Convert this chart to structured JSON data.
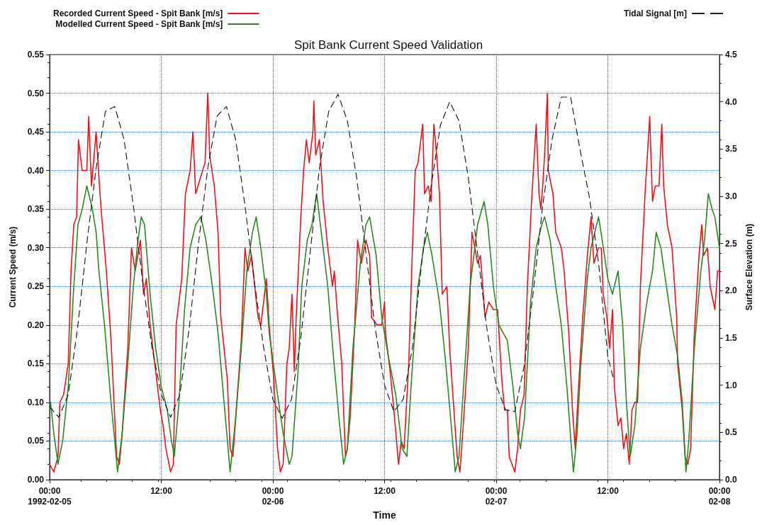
{
  "chart_data": {
    "type": "line",
    "title": "Spit Bank Current Speed Validation",
    "xlabel": "Time",
    "ylabel": "Current Speed (m/s)",
    "y2label": "Surface Elevation (m)",
    "xlim": [
      "1992-02-05T00:00",
      "1992-02-08T00:00"
    ],
    "xticks": [
      {
        "value": "1992-02-05T00:00",
        "label": "00:00\n1992-02-05"
      },
      {
        "value": "1992-02-05T12:00",
        "label": "12:00"
      },
      {
        "value": "1992-02-06T00:00",
        "label": "00:00\n02-06"
      },
      {
        "value": "1992-02-06T12:00",
        "label": "12:00"
      },
      {
        "value": "1992-02-07T00:00",
        "label": "00:00\n02-07"
      },
      {
        "value": "1992-02-07T12:00",
        "label": "12:00"
      },
      {
        "value": "1992-02-08T00:00",
        "label": "00:00\n02-08"
      }
    ],
    "ylim": [
      0,
      0.55
    ],
    "yticks": [
      {
        "value": 0,
        "label": "0.00"
      },
      0.05,
      {
        "value": 0.1,
        "label": "0.10"
      },
      0.15,
      {
        "value": 0.2,
        "label": "0.20"
      },
      0.25,
      {
        "value": 0.3,
        "label": "0.30"
      },
      0.35,
      {
        "value": 0.4,
        "label": "0.40"
      },
      0.45,
      {
        "value": 0.5,
        "label": "0.50"
      },
      0.55
    ],
    "y2lim": [
      0,
      4.5
    ],
    "y2ticks": [
      {
        "value": 0,
        "label": "0.0"
      },
      0.5,
      {
        "value": 1,
        "label": "1.0"
      },
      1.5,
      {
        "value": 2,
        "label": "2.0"
      },
      2.5,
      {
        "value": 3,
        "label": "3.0"
      },
      3.5,
      {
        "value": 4,
        "label": "4.0"
      },
      4.5
    ],
    "grid": true,
    "legend": "top",
    "marker": "none",
    "series": [
      {
        "name": "Recorded Current Speed - Spit Bank [m/s]",
        "color": "#e8141a",
        "line_style": "solid",
        "x": [
          "1992-02-05T00:00",
          "1992-02-05T00:27",
          "1992-02-05T00:54",
          "1992-02-05T01:06",
          "1992-02-05T01:30",
          "1992-02-05T02:00",
          "1992-02-05T02:18",
          "1992-02-05T02:36",
          "1992-02-05T02:54",
          "1992-02-05T03:06",
          "1992-02-05T03:30",
          "1992-02-05T04:00",
          "1992-02-05T04:12",
          "1992-02-05T04:30",
          "1992-02-05T05:00",
          "1992-02-05T05:18",
          "1992-02-05T05:36",
          "1992-02-05T06:06",
          "1992-02-05T06:36",
          "1992-02-05T07:00",
          "1992-02-05T07:12",
          "1992-02-05T07:30",
          "1992-02-05T07:48",
          "1992-02-05T08:24",
          "1992-02-05T08:48",
          "1992-02-05T09:12",
          "1992-02-05T09:45",
          "1992-02-05T10:06",
          "1992-02-05T10:24",
          "1992-02-05T10:48",
          "1992-02-05T11:24",
          "1992-02-05T11:54",
          "1992-02-05T12:12",
          "1992-02-05T12:30",
          "1992-02-05T13:00",
          "1992-02-05T13:18",
          "1992-02-05T13:36",
          "1992-02-05T14:12",
          "1992-02-05T14:36",
          "1992-02-05T15:06",
          "1992-02-05T15:24",
          "1992-02-05T15:42",
          "1992-02-05T16:12",
          "1992-02-05T16:42",
          "1992-02-05T17:00",
          "1992-02-05T17:12",
          "1992-02-05T17:42",
          "1992-02-05T18:06",
          "1992-02-05T18:24",
          "1992-02-05T19:06",
          "1992-02-05T19:24",
          "1992-02-05T19:42",
          "1992-02-05T20:00",
          "1992-02-05T20:36",
          "1992-02-05T21:00",
          "1992-02-05T21:18",
          "1992-02-05T21:42",
          "1992-02-05T22:24",
          "1992-02-05T22:42",
          "1992-02-05T23:18",
          "1992-02-05T23:36",
          "1992-02-06T00:06",
          "1992-02-06T00:30",
          "1992-02-06T00:48",
          "1992-02-06T01:06",
          "1992-02-06T01:30",
          "1992-02-06T01:45",
          "1992-02-06T02:03",
          "1992-02-06T02:18",
          "1992-02-06T02:30",
          "1992-02-06T03:00",
          "1992-02-06T03:18",
          "1992-02-06T03:36",
          "1992-02-06T03:54",
          "1992-02-06T04:18",
          "1992-02-06T04:24",
          "1992-02-06T04:36",
          "1992-02-06T05:00",
          "1992-02-06T05:24",
          "1992-02-06T05:54",
          "1992-02-06T06:24",
          "1992-02-06T06:36",
          "1992-02-06T06:54",
          "1992-02-06T07:24",
          "1992-02-06T07:48",
          "1992-02-06T08:00",
          "1992-02-06T08:18",
          "1992-02-06T08:48",
          "1992-02-06T09:06",
          "1992-02-06T09:30",
          "1992-02-06T10:00",
          "1992-02-06T10:24",
          "1992-02-06T10:36",
          "1992-02-06T11:12",
          "1992-02-06T11:42",
          "1992-02-06T12:00",
          "1992-02-06T12:06",
          "1992-02-06T12:36",
          "1992-02-06T13:00",
          "1992-02-06T13:30",
          "1992-02-06T13:48",
          "1992-02-06T14:06",
          "1992-02-06T14:36",
          "1992-02-06T15:00",
          "1992-02-06T15:18",
          "1992-02-06T15:36",
          "1992-02-06T16:06",
          "1992-02-06T16:18",
          "1992-02-06T16:42",
          "1992-02-06T17:00",
          "1992-02-06T17:18",
          "1992-02-06T17:36",
          "1992-02-06T17:54",
          "1992-02-06T18:12",
          "1992-02-06T18:42",
          "1992-02-06T19:00",
          "1992-02-06T19:24",
          "1992-02-06T19:48",
          "1992-02-06T20:06",
          "1992-02-06T20:24",
          "1992-02-06T21:00",
          "1992-02-06T21:24",
          "1992-02-06T21:42",
          "1992-02-06T22:00",
          "1992-02-06T22:18",
          "1992-02-06T22:48",
          "1992-02-06T23:12",
          "1992-02-06T23:42",
          "1992-02-07T00:09",
          "1992-02-07T00:36",
          "1992-02-07T00:54",
          "1992-02-07T01:12",
          "1992-02-07T01:24",
          "1992-02-07T01:42",
          "1992-02-07T02:00",
          "1992-02-07T02:18",
          "1992-02-07T02:36",
          "1992-02-07T03:00",
          "1992-02-07T03:21",
          "1992-02-07T03:48",
          "1992-02-07T04:18",
          "1992-02-07T04:36",
          "1992-02-07T04:48",
          "1992-02-07T05:00",
          "1992-02-07T05:12",
          "1992-02-07T05:30",
          "1992-02-07T05:36",
          "1992-02-07T06:06",
          "1992-02-07T06:24",
          "1992-02-07T07:00",
          "1992-02-07T07:18",
          "1992-02-07T07:48",
          "1992-02-07T08:12",
          "1992-02-07T08:30",
          "1992-02-07T08:48",
          "1992-02-07T09:18",
          "1992-02-07T09:48",
          "1992-02-07T10:12",
          "1992-02-07T10:30",
          "1992-02-07T11:00",
          "1992-02-07T11:18",
          "1992-02-07T11:30",
          "1992-02-07T11:54",
          "1992-02-07T12:12",
          "1992-02-07T12:30",
          "1992-02-07T12:42",
          "1992-02-07T13:06",
          "1992-02-07T13:24",
          "1992-02-07T13:42",
          "1992-02-07T14:00",
          "1992-02-07T14:18",
          "1992-02-07T14:36",
          "1992-02-07T14:54",
          "1992-02-07T15:12",
          "1992-02-07T15:30",
          "1992-02-07T16:00",
          "1992-02-07T16:30",
          "1992-02-07T16:48",
          "1992-02-07T17:06",
          "1992-02-07T17:30",
          "1992-02-07T17:48",
          "1992-02-07T18:00",
          "1992-02-07T18:24",
          "1992-02-07T18:54",
          "1992-02-07T19:24",
          "1992-02-07T19:30",
          "1992-02-07T20:00",
          "1992-02-07T20:18",
          "1992-02-07T20:36",
          "1992-02-07T20:54",
          "1992-02-07T21:18",
          "1992-02-07T21:48",
          "1992-02-07T22:06",
          "1992-02-07T22:18",
          "1992-02-07T22:42",
          "1992-02-07T23:00",
          "1992-02-07T23:30",
          "1992-02-07T23:48",
          "1992-02-08T00:00"
        ],
        "values": [
          0.02,
          0.01,
          0.03,
          0.1,
          0.11,
          0.15,
          0.27,
          0.33,
          0.34,
          0.44,
          0.4,
          0.4,
          0.47,
          0.38,
          0.45,
          0.39,
          0.34,
          0.27,
          0.18,
          0.08,
          0.03,
          0.02,
          0.06,
          0.17,
          0.3,
          0.27,
          0.31,
          0.24,
          0.26,
          0.2,
          0.14,
          0.09,
          0.07,
          0.04,
          0.01,
          0.02,
          0.2,
          0.26,
          0.37,
          0.4,
          0.45,
          0.37,
          0.39,
          0.41,
          0.5,
          0.42,
          0.38,
          0.32,
          0.21,
          0.13,
          0.04,
          0.03,
          0.08,
          0.18,
          0.3,
          0.27,
          0.29,
          0.21,
          0.2,
          0.26,
          0.2,
          0.13,
          0.04,
          0.01,
          0.02,
          0.15,
          0.17,
          0.24,
          0.14,
          0.21,
          0.34,
          0.4,
          0.44,
          0.41,
          0.45,
          0.49,
          0.42,
          0.44,
          0.36,
          0.3,
          0.25,
          0.27,
          0.22,
          0.15,
          0.03,
          0.04,
          0.08,
          0.2,
          0.31,
          0.28,
          0.31,
          0.29,
          0.21,
          0.2,
          0.2,
          0.23,
          0.19,
          0.14,
          0.09,
          0.02,
          0.05,
          0.04,
          0.15,
          0.3,
          0.4,
          0.41,
          0.46,
          0.37,
          0.38,
          0.36,
          0.46,
          0.42,
          0.37,
          0.24,
          0.25,
          0.17,
          0.1,
          0.03,
          0.01,
          0.06,
          0.17,
          0.32,
          0.3,
          0.28,
          0.29,
          0.21,
          0.23,
          0.22,
          0.22,
          0.13,
          0.09,
          0.09,
          0.03,
          0.02,
          0.01,
          0.04,
          0.09,
          0.11,
          0.25,
          0.36,
          0.46,
          0.37,
          0.35,
          0.38,
          0.42,
          0.5,
          0.4,
          0.37,
          0.32,
          0.3,
          0.27,
          0.19,
          0.09,
          0.04,
          0.11,
          0.21,
          0.29,
          0.34,
          0.28,
          0.3,
          0.3,
          0.24,
          0.21,
          0.17,
          0.22,
          0.12,
          0.07,
          0.08,
          0.04,
          0.06,
          0.02,
          0.09,
          0.1,
          0.1,
          0.25,
          0.37,
          0.47,
          0.36,
          0.38,
          0.38,
          0.46,
          0.38,
          0.33,
          0.3,
          0.21,
          0.15,
          0.09,
          0.03,
          0.02,
          0.04,
          0.19,
          0.29,
          0.33,
          0.29,
          0.3,
          0.25,
          0.22,
          0.27,
          0.27
        ]
      },
      {
        "name": "Modelled Current Speed - Spit Bank [m/s]",
        "color": "#2a8a1f",
        "line_style": "solid",
        "x": [
          "1992-02-05T00:06",
          "1992-02-05T00:27",
          "1992-02-05T00:54",
          "1992-02-05T01:24",
          "1992-02-05T02:00",
          "1992-02-05T02:36",
          "1992-02-05T03:03",
          "1992-02-05T03:30",
          "1992-02-05T04:00",
          "1992-02-05T04:36",
          "1992-02-05T05:00",
          "1992-02-05T05:18",
          "1992-02-05T05:54",
          "1992-02-05T06:36",
          "1992-02-05T07:00",
          "1992-02-05T07:18",
          "1992-02-05T07:48",
          "1992-02-05T08:24",
          "1992-02-05T09:00",
          "1992-02-05T09:30",
          "1992-02-05T09:51",
          "1992-02-05T10:12",
          "1992-02-05T10:48",
          "1992-02-05T11:24",
          "1992-02-05T12:00",
          "1992-02-05T12:39",
          "1992-02-05T13:06",
          "1992-02-05T13:24",
          "1992-02-05T13:54",
          "1992-02-05T14:30",
          "1992-02-05T15:06",
          "1992-02-05T15:42",
          "1992-02-05T16:15",
          "1992-02-05T16:48",
          "1992-02-05T17:30",
          "1992-02-05T18:06",
          "1992-02-05T18:45",
          "1992-02-05T19:24",
          "1992-02-05T20:00",
          "1992-02-05T20:36",
          "1992-02-05T21:12",
          "1992-02-05T21:48",
          "1992-02-05T22:12",
          "1992-02-05T22:42",
          "1992-02-05T23:18",
          "1992-02-05T23:36",
          "1992-02-06T00:30",
          "1992-02-06T01:06",
          "1992-02-06T01:45",
          "1992-02-06T02:03",
          "1992-02-06T02:42",
          "1992-02-06T03:06",
          "1992-02-06T03:42",
          "1992-02-06T04:12",
          "1992-02-06T04:42",
          "1992-02-06T05:18",
          "1992-02-06T05:54",
          "1992-02-06T06:30",
          "1992-02-06T07:06",
          "1992-02-06T07:36",
          "1992-02-06T08:00",
          "1992-02-06T08:36",
          "1992-02-06T09:24",
          "1992-02-06T10:00",
          "1992-02-06T10:24",
          "1992-02-06T11:06",
          "1992-02-06T11:42",
          "1992-02-06T12:24",
          "1992-02-06T13:12",
          "1992-02-06T13:54",
          "1992-02-06T14:24",
          "1992-02-06T14:54",
          "1992-02-06T15:36",
          "1992-02-06T16:12",
          "1992-02-06T16:36",
          "1992-02-06T17:06",
          "1992-02-06T17:54",
          "1992-02-06T18:30",
          "1992-02-06T19:06",
          "1992-02-06T19:36",
          "1992-02-06T20:00",
          "1992-02-06T20:36",
          "1992-02-06T21:12",
          "1992-02-06T22:00",
          "1992-02-06T22:42",
          "1992-02-06T23:06",
          "1992-02-06T23:42",
          "1992-02-07T00:18",
          "1992-02-07T01:12",
          "1992-02-07T01:48",
          "1992-02-07T02:18",
          "1992-02-07T02:36",
          "1992-02-07T03:03",
          "1992-02-07T03:42",
          "1992-02-07T04:18",
          "1992-02-07T04:54",
          "1992-02-07T05:12",
          "1992-02-07T05:48",
          "1992-02-07T06:24",
          "1992-02-07T07:00",
          "1992-02-07T07:36",
          "1992-02-07T08:06",
          "1992-02-07T08:18",
          "1992-02-07T08:42",
          "1992-02-07T09:06",
          "1992-02-07T09:48",
          "1992-02-07T10:12",
          "1992-02-07T11:00",
          "1992-02-07T11:24",
          "1992-02-07T12:00",
          "1992-02-07T12:30",
          "1992-02-07T13:06",
          "1992-02-07T13:36",
          "1992-02-07T14:00",
          "1992-02-07T14:24",
          "1992-02-07T14:54",
          "1992-02-07T15:30",
          "1992-02-07T16:12",
          "1992-02-07T16:48",
          "1992-02-07T17:12",
          "1992-02-07T17:42",
          "1992-02-07T18:18",
          "1992-02-07T18:54",
          "1992-02-07T19:30",
          "1992-02-07T20:00",
          "1992-02-07T20:24",
          "1992-02-07T20:42",
          "1992-02-07T21:18",
          "1992-02-07T22:00",
          "1992-02-07T22:24",
          "1992-02-07T22:48",
          "1992-02-07T23:12",
          "1992-02-07T23:30",
          "1992-02-08T00:00"
        ],
        "values": [
          0.1,
          0.06,
          0.02,
          0.05,
          0.12,
          0.25,
          0.33,
          0.35,
          0.38,
          0.35,
          0.32,
          0.27,
          0.2,
          0.1,
          0.05,
          0.01,
          0.06,
          0.15,
          0.25,
          0.31,
          0.34,
          0.33,
          0.24,
          0.17,
          0.12,
          0.09,
          0.05,
          0.03,
          0.1,
          0.22,
          0.3,
          0.33,
          0.34,
          0.31,
          0.25,
          0.19,
          0.1,
          0.01,
          0.08,
          0.17,
          0.27,
          0.32,
          0.34,
          0.3,
          0.24,
          0.19,
          0.11,
          0.06,
          0.02,
          0.03,
          0.14,
          0.25,
          0.31,
          0.33,
          0.37,
          0.31,
          0.25,
          0.16,
          0.08,
          0.02,
          0.04,
          0.17,
          0.28,
          0.33,
          0.34,
          0.29,
          0.21,
          0.16,
          0.11,
          0.04,
          0.03,
          0.13,
          0.25,
          0.3,
          0.32,
          0.29,
          0.23,
          0.16,
          0.08,
          0.01,
          0.03,
          0.14,
          0.25,
          0.33,
          0.36,
          0.33,
          0.25,
          0.2,
          0.18,
          0.12,
          0.06,
          0.04,
          0.08,
          0.23,
          0.3,
          0.33,
          0.34,
          0.31,
          0.25,
          0.2,
          0.12,
          0.04,
          0.01,
          0.06,
          0.15,
          0.26,
          0.3,
          0.34,
          0.31,
          0.26,
          0.24,
          0.27,
          0.2,
          0.1,
          0.03,
          0.07,
          0.17,
          0.23,
          0.27,
          0.32,
          0.3,
          0.25,
          0.2,
          0.16,
          0.1,
          0.01,
          0.05,
          0.17,
          0.27,
          0.31,
          0.37,
          0.35,
          0.34,
          0.3
        ]
      },
      {
        "name": "Tidal Signal [m]",
        "color": "#222222",
        "line_style": "dashed",
        "axis": "y2",
        "x": [
          "1992-02-05T00:00",
          "1992-02-05T01:00",
          "1992-02-05T02:00",
          "1992-02-05T03:00",
          "1992-02-05T04:00",
          "1992-02-05T05:00",
          "1992-02-05T06:00",
          "1992-02-05T07:00",
          "1992-02-05T08:00",
          "1992-02-05T09:00",
          "1992-02-05T10:00",
          "1992-02-05T11:00",
          "1992-02-05T12:00",
          "1992-02-05T13:00",
          "1992-02-05T14:00",
          "1992-02-05T15:00",
          "1992-02-05T16:00",
          "1992-02-05T17:00",
          "1992-02-05T18:00",
          "1992-02-05T19:00",
          "1992-02-05T20:00",
          "1992-02-05T21:00",
          "1992-02-05T22:00",
          "1992-02-05T23:00",
          "1992-02-06T00:00",
          "1992-02-06T01:00",
          "1992-02-06T02:00",
          "1992-02-06T03:00",
          "1992-02-06T04:00",
          "1992-02-06T05:00",
          "1992-02-06T06:00",
          "1992-02-06T07:00",
          "1992-02-06T08:00",
          "1992-02-06T09:00",
          "1992-02-06T10:00",
          "1992-02-06T11:00",
          "1992-02-06T12:00",
          "1992-02-06T13:00",
          "1992-02-06T14:00",
          "1992-02-06T15:00",
          "1992-02-06T16:00",
          "1992-02-06T17:00",
          "1992-02-06T18:00",
          "1992-02-06T19:00",
          "1992-02-06T20:00",
          "1992-02-06T21:00",
          "1992-02-06T22:00",
          "1992-02-06T23:00",
          "1992-02-07T00:00",
          "1992-02-07T01:00",
          "1992-02-07T02:00",
          "1992-02-07T03:00",
          "1992-02-07T04:00",
          "1992-02-07T05:00",
          "1992-02-07T06:00",
          "1992-02-07T07:00",
          "1992-02-07T08:00",
          "1992-02-07T09:00",
          "1992-02-07T10:00",
          "1992-02-07T11:00",
          "1992-02-07T12:00",
          "1992-02-07T12:36"
        ],
        "values": [
          0.77,
          0.66,
          0.9,
          1.6,
          2.5,
          3.3,
          3.9,
          3.95,
          3.6,
          2.9,
          2.1,
          1.4,
          0.9,
          0.66,
          0.9,
          1.6,
          2.5,
          3.3,
          3.85,
          3.95,
          3.6,
          2.9,
          2.1,
          1.4,
          0.85,
          0.65,
          0.85,
          1.5,
          2.4,
          3.3,
          3.9,
          4.08,
          3.8,
          3.2,
          2.4,
          1.6,
          1.0,
          0.72,
          0.85,
          1.4,
          2.3,
          3.1,
          3.75,
          4.0,
          3.8,
          3.2,
          2.4,
          1.6,
          1.0,
          0.74,
          0.72,
          1.2,
          2.0,
          2.9,
          3.6,
          4.05,
          4.05,
          3.5,
          3.0,
          2.3,
          1.3,
          1.07
        ]
      }
    ]
  }
}
